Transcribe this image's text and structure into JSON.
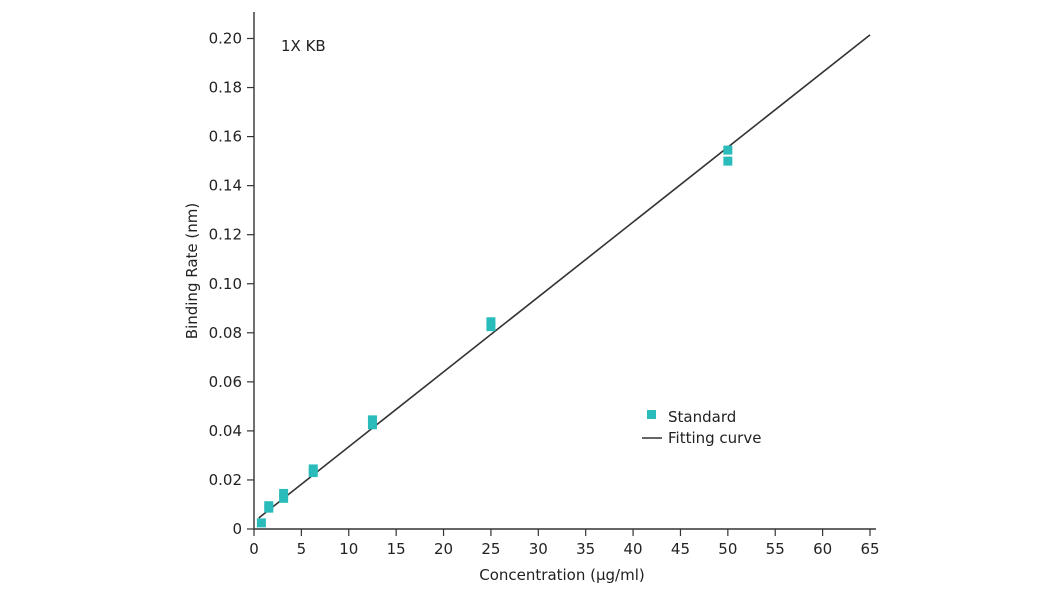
{
  "chart_data": {
    "type": "scatter",
    "title": "",
    "annotation": "1X KB",
    "xlabel": "Concentration (µg/ml)",
    "ylabel": "Binding Rate (nm)",
    "xlim": [
      0,
      65
    ],
    "ylim": [
      0,
      0.21
    ],
    "x_ticks": [
      "0",
      "5",
      "10",
      "15",
      "20",
      "25",
      "30",
      "35",
      "40",
      "45",
      "50",
      "55",
      "60",
      "65"
    ],
    "y_ticks": [
      "0",
      "0.02",
      "0.04",
      "0.06",
      "0.08",
      "0.10",
      "0.12",
      "0.14",
      "0.16",
      "0.18",
      "0.20"
    ],
    "x_tick_values": [
      0,
      5,
      10,
      15,
      20,
      25,
      30,
      35,
      40,
      45,
      50,
      55,
      60,
      65
    ],
    "y_tick_values": [
      0,
      0.02,
      0.04,
      0.06,
      0.08,
      0.1,
      0.12,
      0.14,
      0.16,
      0.18,
      0.2
    ],
    "grid": false,
    "legend_position": "right-middle",
    "series": [
      {
        "name": "Standard",
        "kind": "scatter",
        "color": "#2abbbb",
        "x": [
          0.78,
          1.56,
          1.56,
          3.125,
          3.125,
          6.25,
          6.25,
          12.5,
          12.5,
          25,
          25,
          50,
          50
        ],
        "y": [
          0.0025,
          0.0085,
          0.0095,
          0.0125,
          0.0145,
          0.023,
          0.0245,
          0.0425,
          0.0445,
          0.0825,
          0.0845,
          0.15,
          0.1545
        ]
      },
      {
        "name": "Fitting curve",
        "kind": "line",
        "color": "#333333",
        "x": [
          0.5,
          65
        ],
        "y": [
          0.0045,
          0.2015
        ]
      }
    ]
  }
}
